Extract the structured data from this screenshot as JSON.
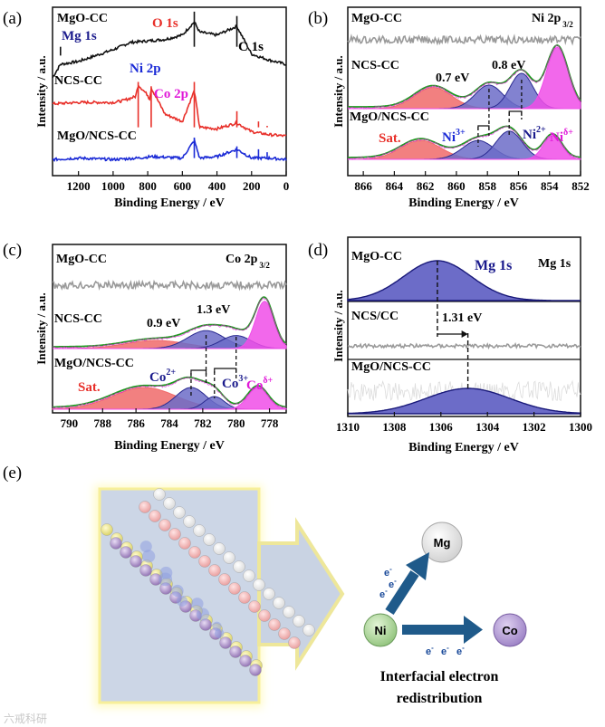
{
  "colors": {
    "black": "#111111",
    "red": "#e8302a",
    "blue": "#1a2ad6",
    "gray": "#9a9a9a",
    "green": "#1f9a1f",
    "navy": "#1a1a8c",
    "magenta": "#e01ad8",
    "fill_red": "#f06a6a",
    "fill_blue": "#6c6cc8",
    "fill_magenta": "#f04de8"
  },
  "panel_labels": [
    "(a)",
    "(b)",
    "(c)",
    "(d)",
    "(e)"
  ],
  "ylabel": "Intensity / a.u.",
  "xlabel": "Binding Energy / eV",
  "panel_a": {
    "series_labels": [
      "MgO-CC",
      "NCS-CC",
      "MgO/NCS-CC"
    ],
    "peak_labels": [
      "Mg 1s",
      "O 1s",
      "C 1s",
      "Ni 2p",
      "Co 2p"
    ],
    "xticks": [
      "1200",
      "1000",
      "800",
      "600",
      "400",
      "200",
      "0"
    ]
  },
  "panel_b": {
    "title": "Ni 2p",
    "title_sub": "3/2",
    "series_labels": [
      "MgO-CC",
      "NCS-CC",
      "MgO/NCS-CC"
    ],
    "shift_labels": [
      "0.7 eV",
      "0.8 eV"
    ],
    "peak_labels": [
      "Sat.",
      "Ni",
      "Ni",
      "Ni"
    ],
    "peak_sups": [
      "3+",
      "2+",
      "δ+"
    ],
    "xticks": [
      "866",
      "864",
      "862",
      "860",
      "858",
      "856",
      "854",
      "852"
    ]
  },
  "panel_c": {
    "title": "Co 2p",
    "title_sub": "3/2",
    "series_labels": [
      "MgO-CC",
      "NCS-CC",
      "MgO/NCS-CC"
    ],
    "shift_labels": [
      "0.9 eV",
      "1.3 eV"
    ],
    "peak_labels": [
      "Sat.",
      "Co",
      "Co",
      "Co"
    ],
    "peak_sups": [
      "2+",
      "3+",
      "δ+"
    ],
    "xticks": [
      "790",
      "788",
      "786",
      "784",
      "782",
      "780",
      "778"
    ]
  },
  "panel_d": {
    "title": "Mg 1s",
    "series_labels": [
      "MgO-CC",
      "NCS/CC",
      "MgO/NCS-CC"
    ],
    "peak_label": "Mg 1s",
    "shift_label": "1.31 eV",
    "xticks": [
      "1310",
      "1308",
      "1306",
      "1304",
      "1302",
      "1300"
    ]
  },
  "panel_e": {
    "nodes": [
      "Mg",
      "Ni",
      "Co"
    ],
    "electron_label": "e",
    "electron_sup": "-",
    "caption_line1": "Interfacial electron",
    "caption_line2": "redistribution",
    "watermark": "六戒科研"
  },
  "chart_data": [
    {
      "type": "line",
      "panel": "(a)",
      "xlabel": "Binding Energy / eV",
      "ylabel": "Intensity / a.u.",
      "xlim": [
        1350,
        0
      ],
      "x_reversed": true,
      "series": [
        {
          "name": "MgO-CC",
          "color": "#111111",
          "x": [
            1350,
            1304,
            1200,
            1000,
            900,
            800,
            700,
            600,
            531,
            500,
            400,
            285,
            200,
            100,
            0
          ],
          "y": [
            6.7,
            7.6,
            7.8,
            8.6,
            9.1,
            9.2,
            9.3,
            9.6,
            10.5,
            9.8,
            9.6,
            10.2,
            8.3,
            7.9,
            7.6
          ]
        },
        {
          "name": "NCS-CC",
          "color": "#e8302a",
          "x": [
            1350,
            1200,
            1000,
            950,
            870,
            855,
            800,
            790,
            780,
            700,
            600,
            531,
            500,
            400,
            285,
            200,
            100,
            0
          ],
          "y": [
            4.9,
            5.0,
            5.0,
            5.1,
            5.4,
            6.2,
            5.5,
            5.2,
            6.0,
            4.2,
            3.7,
            5.8,
            3.3,
            3.2,
            3.6,
            3.0,
            2.8,
            2.7
          ]
        },
        {
          "name": "MgO/NCS-CC",
          "color": "#1a2ad6",
          "x": [
            1350,
            1200,
            1000,
            855,
            780,
            600,
            531,
            500,
            400,
            285,
            200,
            100,
            0
          ],
          "y": [
            1.1,
            1.2,
            1.1,
            1.2,
            1.3,
            1.2,
            2.4,
            1.2,
            1.3,
            1.8,
            1.2,
            1.2,
            1.1
          ]
        }
      ],
      "annotations": [
        "Mg 1s",
        "O 1s",
        "C 1s",
        "Ni 2p",
        "Co 2p"
      ]
    },
    {
      "type": "area",
      "panel": "(b)",
      "title": "Ni 2p3/2",
      "xlabel": "Binding Energy / eV",
      "ylabel": "Intensity / a.u.",
      "xlim": [
        867,
        852
      ],
      "x_reversed": true,
      "series": [
        {
          "name": "MgO-CC",
          "color": "#9a9a9a",
          "x": [
            867,
            852
          ],
          "y": [
            9.2,
            9.4
          ]
        },
        {
          "name": "NCS-CC Sat.",
          "color": "#f06a6a",
          "center": 861.5,
          "amplitude": 0.9
        },
        {
          "name": "NCS-CC Ni3+",
          "color": "#6c6cc8",
          "center": 857.9,
          "amplitude": 1.0
        },
        {
          "name": "NCS-CC Ni2+",
          "color": "#6c6cc8",
          "center": 855.8,
          "amplitude": 1.5
        },
        {
          "name": "NCS-CC Niδ+",
          "color": "#f04de8",
          "center": 853.5,
          "amplitude": 2.6
        },
        {
          "name": "MgO/NCS-CC Sat.",
          "color": "#f06a6a",
          "center": 862.3,
          "amplitude": 0.8
        },
        {
          "name": "MgO/NCS-CC Ni3+",
          "color": "#6c6cc8",
          "center": 858.6,
          "amplitude": 0.8
        },
        {
          "name": "MgO/NCS-CC Ni2+",
          "color": "#6c6cc8",
          "center": 856.6,
          "amplitude": 1.2
        },
        {
          "name": "MgO/NCS-CC Niδ+",
          "color": "#f04de8",
          "center": 853.8,
          "amplitude": 1.0
        }
      ],
      "annotations": [
        "0.7 eV",
        "0.8 eV",
        "Sat.",
        "Ni3+",
        "Ni2+",
        "Niδ+"
      ]
    },
    {
      "type": "area",
      "panel": "(c)",
      "title": "Co 2p3/2",
      "xlabel": "Binding Energy / eV",
      "ylabel": "Intensity / a.u.",
      "xlim": [
        791,
        777
      ],
      "x_reversed": true,
      "series": [
        {
          "name": "MgO-CC",
          "color": "#9a9a9a",
          "x": [
            791,
            777
          ],
          "y": [
            8.3,
            8.4
          ]
        },
        {
          "name": "NCS-CC Sat.",
          "color": "#f06a6a",
          "center": 784.8,
          "amplitude": 0.5
        },
        {
          "name": "NCS-CC Co2+",
          "color": "#6c6cc8",
          "center": 781.8,
          "amplitude": 1.1
        },
        {
          "name": "NCS-CC Co3+",
          "color": "#6c6cc8",
          "center": 780.0,
          "amplitude": 0.8
        },
        {
          "name": "NCS-CC Coδ+",
          "color": "#f04de8",
          "center": 778.3,
          "amplitude": 2.9
        },
        {
          "name": "MgO/NCS-CC Sat.",
          "color": "#f06a6a",
          "center": 785.5,
          "amplitude": 1.2
        },
        {
          "name": "MgO/NCS-CC Co2+",
          "color": "#6c6cc8",
          "center": 782.7,
          "amplitude": 1.2
        },
        {
          "name": "MgO/NCS-CC Co3+",
          "color": "#6c6cc8",
          "center": 781.3,
          "amplitude": 0.7
        },
        {
          "name": "MgO/NCS-CC Coδ+",
          "color": "#f04de8",
          "center": 778.7,
          "amplitude": 1.2
        }
      ],
      "annotations": [
        "0.9 eV",
        "1.3 eV",
        "Sat.",
        "Co2+",
        "Co3+",
        "Coδ+"
      ]
    },
    {
      "type": "area",
      "panel": "(d)",
      "title": "Mg 1s",
      "xlabel": "Binding Energy / eV",
      "ylabel": "Intensity / a.u.",
      "xlim": [
        1310,
        1300
      ],
      "x_reversed": true,
      "series": [
        {
          "name": "MgO-CC",
          "color": "#6c6cc8",
          "center": 1306.15,
          "amplitude": 3.0
        },
        {
          "name": "NCS/CC",
          "color": "#9a9a9a",
          "x": [
            1310,
            1300
          ],
          "y": [
            4.6,
            4.6
          ]
        },
        {
          "name": "MgO/NCS-CC",
          "color": "#6c6cc8",
          "center": 1304.84,
          "amplitude": 1.2
        }
      ],
      "annotations": [
        "Mg 1s",
        "1.31 eV"
      ]
    }
  ]
}
